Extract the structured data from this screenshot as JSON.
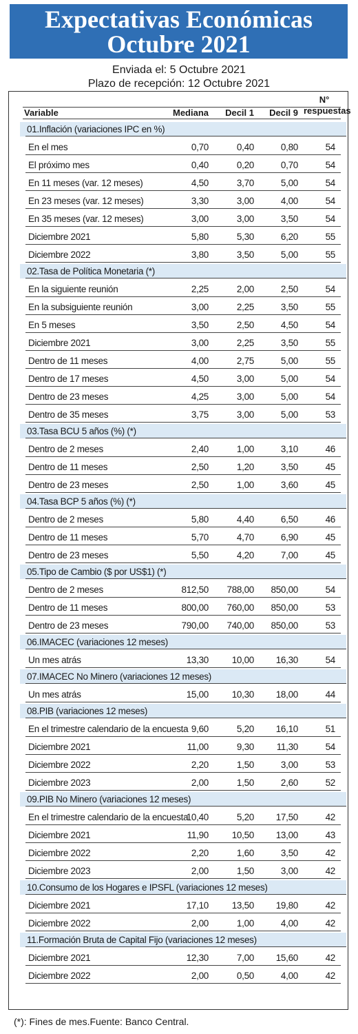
{
  "title_line1": "Expectativas Económicas",
  "title_line2": "Octubre 2021",
  "sent": "Enviada el: 5 Octubre 2021",
  "deadline": "Plazo de recepción: 12 Octubre 2021",
  "columns": {
    "variable": "Variable",
    "mediana": "Mediana",
    "decil1": "Decil 1",
    "decil9": "Decil 9",
    "resp_line1": "N°",
    "resp_line2": "respuestas"
  },
  "sections": [
    {
      "title": "01.Inflación (variaciones IPC en %)",
      "rows": [
        [
          "En el mes",
          "0,70",
          "0,40",
          "0,80",
          "54"
        ],
        [
          "El próximo mes",
          "0,40",
          "0,20",
          "0,70",
          "54"
        ],
        [
          "En 11 meses (var. 12 meses)",
          "4,50",
          "3,70",
          "5,00",
          "54"
        ],
        [
          "En 23 meses (var. 12 meses)",
          "3,30",
          "3,00",
          "4,00",
          "54"
        ],
        [
          "En 35 meses (var. 12 meses)",
          "3,00",
          "3,00",
          "3,50",
          "54"
        ],
        [
          "Diciembre 2021",
          "5,80",
          "5,30",
          "6,20",
          "55"
        ],
        [
          "Diciembre 2022",
          "3,80",
          "3,50",
          "5,00",
          "55"
        ]
      ]
    },
    {
      "title": "02.Tasa de Política Monetaria  (*)",
      "rows": [
        [
          "En la siguiente reunión",
          "2,25",
          "2,00",
          "2,50",
          "54"
        ],
        [
          "En la subsiguiente reunión",
          "3,00",
          "2,25",
          "3,50",
          "55"
        ],
        [
          "En 5 meses",
          "3,50",
          "2,50",
          "4,50",
          "54"
        ],
        [
          "Diciembre 2021",
          "3,00",
          "2,25",
          "3,50",
          "55"
        ],
        [
          "Dentro de 11 meses",
          "4,00",
          "2,75",
          "5,00",
          "55"
        ],
        [
          "Dentro de 17 meses",
          "4,50",
          "3,00",
          "5,00",
          "54"
        ],
        [
          "Dentro de 23 meses",
          "4,25",
          "3,00",
          "5,00",
          "54"
        ],
        [
          "Dentro de 35 meses",
          "3,75",
          "3,00",
          "5,00",
          "53"
        ]
      ]
    },
    {
      "title": "03.Tasa BCU 5 años  (%)  (*)",
      "rows": [
        [
          "Dentro de 2 meses",
          "2,40",
          "1,00",
          "3,10",
          "46"
        ],
        [
          "Dentro de 11 meses",
          "2,50",
          "1,20",
          "3,50",
          "45"
        ],
        [
          "Dentro de 23 meses",
          "2,50",
          "1,00",
          "3,60",
          "45"
        ]
      ]
    },
    {
      "title": "04.Tasa BCP 5 años  (%) (*)",
      "rows": [
        [
          "Dentro de 2 meses",
          "5,80",
          "4,40",
          "6,50",
          "46"
        ],
        [
          "Dentro de 11 meses",
          "5,70",
          "4,70",
          "6,90",
          "45"
        ],
        [
          "Dentro de 23 meses",
          "5,50",
          "4,20",
          "7,00",
          "45"
        ]
      ]
    },
    {
      "title": "05.Tipo de Cambio  ($ por US$1) (*)",
      "rows": [
        [
          "Dentro de 2 meses",
          "812,50",
          "788,00",
          "850,00",
          "54"
        ],
        [
          "Dentro de 11 meses",
          "800,00",
          "760,00",
          "850,00",
          "53"
        ],
        [
          "Dentro de 23 meses",
          "790,00",
          "740,00",
          "850,00",
          "53"
        ]
      ]
    },
    {
      "title": "06.IMACEC  (variaciones 12 meses)",
      "rows": [
        [
          "Un mes atrás",
          "13,30",
          "10,00",
          "16,30",
          "54"
        ]
      ]
    },
    {
      "title": "07.IMACEC No Minero (variaciones 12 meses)",
      "rows": [
        [
          "Un mes atrás",
          "15,00",
          "10,30",
          "18,00",
          "44"
        ]
      ]
    },
    {
      "title": "08.PIB  (variaciones 12 meses)",
      "rows": [
        [
          "En el trimestre calendario de la encuesta",
          "9,60",
          "5,20",
          "16,10",
          "51"
        ],
        [
          "Diciembre 2021",
          "11,00",
          "9,30",
          "11,30",
          "54"
        ],
        [
          "Diciembre 2022",
          "2,20",
          "1,50",
          "3,00",
          "53"
        ],
        [
          "Diciembre 2023",
          "2,00",
          "1,50",
          "2,60",
          "52"
        ]
      ]
    },
    {
      "title": "09.PIB No Minero (variaciones 12 meses)",
      "rows": [
        [
          "En el trimestre calendario de la encuesta",
          "10,40",
          "5,20",
          "17,50",
          "42"
        ],
        [
          "Diciembre 2021",
          "11,90",
          "10,50",
          "13,00",
          "43"
        ],
        [
          "Diciembre 2022",
          "2,20",
          "1,60",
          "3,50",
          "42"
        ],
        [
          "Diciembre 2023",
          "2,00",
          "1,50",
          "3,00",
          "42"
        ]
      ]
    },
    {
      "title": "10.Consumo de los Hogares e IPSFL  (variaciones 12 meses)",
      "rows": [
        [
          "Diciembre 2021",
          "17,10",
          "13,50",
          "19,80",
          "42"
        ],
        [
          "Diciembre 2022",
          "2,00",
          "1,00",
          "4,00",
          "42"
        ]
      ]
    },
    {
      "title": "11.Formación Bruta de Capital Fijo  (variaciones 12 meses)",
      "rows": [
        [
          "Diciembre 2021",
          "12,30",
          "7,00",
          "15,60",
          "42"
        ],
        [
          "Diciembre 2022",
          "2,00",
          "0,50",
          "4,00",
          "42"
        ]
      ]
    }
  ],
  "footnote": "(*): Fines de mes.Fuente: Banco Central."
}
